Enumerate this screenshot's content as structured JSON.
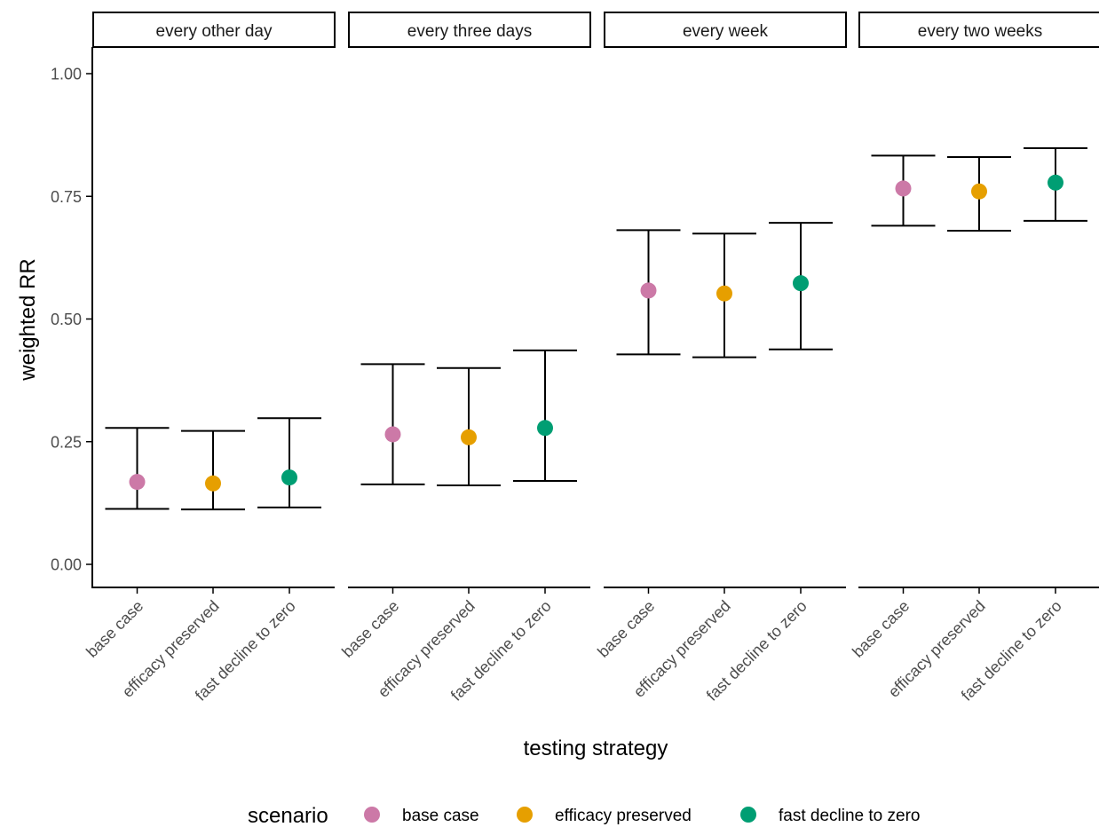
{
  "chart_data": {
    "type": "scatter",
    "subtype": "faceted point with error bars",
    "xlabel": "testing strategy",
    "ylabel": "weighted RR",
    "ylim": [
      0,
      1.0
    ],
    "yticks": [
      "0.00",
      "0.25",
      "0.50",
      "0.75",
      "1.00"
    ],
    "ytick_values": [
      0,
      0.25,
      0.5,
      0.75,
      1.0
    ],
    "categories": [
      "base case",
      "efficacy preserved",
      "fast decline to zero"
    ],
    "legend": {
      "title": "scenario",
      "position": "bottom",
      "entries": [
        {
          "label": "base case",
          "color": "#CC79A7"
        },
        {
          "label": "efficacy preserved",
          "color": "#E69F00"
        },
        {
          "label": "fast decline to zero",
          "color": "#009E73"
        }
      ]
    },
    "panels": [
      {
        "title": "every other day",
        "points": [
          {
            "category": "base case",
            "y": 0.168,
            "low": 0.113,
            "high": 0.278
          },
          {
            "category": "efficacy preserved",
            "y": 0.165,
            "low": 0.112,
            "high": 0.272
          },
          {
            "category": "fast decline to zero",
            "y": 0.177,
            "low": 0.116,
            "high": 0.298
          }
        ]
      },
      {
        "title": "every three days",
        "points": [
          {
            "category": "base case",
            "y": 0.265,
            "low": 0.163,
            "high": 0.408
          },
          {
            "category": "efficacy preserved",
            "y": 0.259,
            "low": 0.161,
            "high": 0.4
          },
          {
            "category": "fast decline to zero",
            "y": 0.278,
            "low": 0.17,
            "high": 0.436
          }
        ]
      },
      {
        "title": "every week",
        "points": [
          {
            "category": "base case",
            "y": 0.558,
            "low": 0.428,
            "high": 0.681
          },
          {
            "category": "efficacy preserved",
            "y": 0.552,
            "low": 0.422,
            "high": 0.674
          },
          {
            "category": "fast decline to zero",
            "y": 0.573,
            "low": 0.438,
            "high": 0.696
          }
        ]
      },
      {
        "title": "every two weeks",
        "points": [
          {
            "category": "base case",
            "y": 0.766,
            "low": 0.69,
            "high": 0.833
          },
          {
            "category": "efficacy preserved",
            "y": 0.76,
            "low": 0.68,
            "high": 0.83
          },
          {
            "category": "fast decline to zero",
            "y": 0.778,
            "low": 0.7,
            "high": 0.848
          }
        ]
      }
    ]
  }
}
